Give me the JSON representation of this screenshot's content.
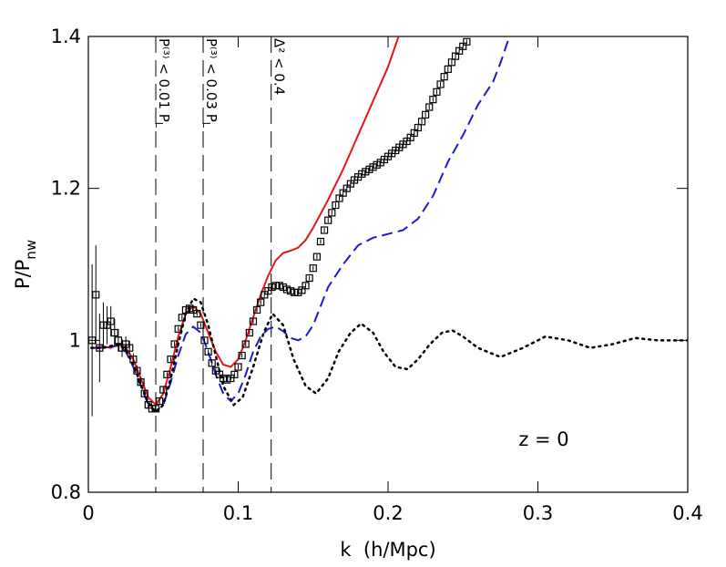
{
  "chart_data": {
    "type": "line",
    "x_label": "k  (h/Mpc)",
    "y_label": "P/P",
    "y_label_sub": "nw",
    "annotation": "z = 0",
    "xlim": [
      0,
      0.4
    ],
    "ylim": [
      0.8,
      1.4
    ],
    "xticks": [
      0,
      0.1,
      0.2,
      0.3,
      0.4
    ],
    "yticks": [
      0.8,
      1,
      1.2,
      1.4
    ],
    "vlines": [
      {
        "x": 0.045,
        "label": "P⁽³⁾ < 0.01 P",
        "label_sub": "L"
      },
      {
        "x": 0.0766,
        "label": "P⁽³⁾ < 0.03 P",
        "label_sub": "L"
      },
      {
        "x": 0.122,
        "label": "Δ² < 0.4"
      }
    ],
    "series": [
      {
        "style": "solid",
        "color": "#e8141c",
        "x": [
          0.004,
          0.01,
          0.015,
          0.02,
          0.025,
          0.03,
          0.035,
          0.04,
          0.045,
          0.05,
          0.055,
          0.06,
          0.065,
          0.07,
          0.075,
          0.08,
          0.085,
          0.09,
          0.095,
          0.1,
          0.105,
          0.11,
          0.115,
          0.12,
          0.125,
          0.13,
          0.135,
          0.14,
          0.145,
          0.15,
          0.16,
          0.17,
          0.18,
          0.19,
          0.2,
          0.207
        ],
        "values": [
          0.99,
          0.992,
          0.99,
          0.995,
          0.99,
          0.975,
          0.95,
          0.925,
          0.915,
          0.93,
          0.965,
          1.005,
          1.035,
          1.045,
          1.035,
          1.01,
          0.985,
          0.968,
          0.965,
          0.975,
          1.0,
          1.03,
          1.06,
          1.085,
          1.105,
          1.115,
          1.118,
          1.122,
          1.132,
          1.148,
          1.185,
          1.225,
          1.27,
          1.315,
          1.36,
          1.4
        ]
      },
      {
        "style": "dashed",
        "color": "#1a1ad6",
        "x": [
          0.002,
          0.01,
          0.02,
          0.025,
          0.03,
          0.035,
          0.04,
          0.045,
          0.05,
          0.055,
          0.06,
          0.065,
          0.07,
          0.075,
          0.08,
          0.085,
          0.09,
          0.095,
          0.1,
          0.105,
          0.11,
          0.115,
          0.12,
          0.125,
          0.13,
          0.135,
          0.14,
          0.145,
          0.15,
          0.155,
          0.16,
          0.17,
          0.18,
          0.19,
          0.2,
          0.21,
          0.22,
          0.23,
          0.24,
          0.25,
          0.26,
          0.27,
          0.275,
          0.281
        ],
        "values": [
          0.99,
          0.99,
          0.993,
          0.985,
          0.965,
          0.94,
          0.915,
          0.907,
          0.915,
          0.945,
          0.98,
          1.008,
          1.018,
          1.01,
          0.985,
          0.955,
          0.93,
          0.92,
          0.93,
          0.955,
          0.985,
          1.005,
          1.015,
          1.018,
          1.012,
          1.003,
          1.0,
          1.005,
          1.02,
          1.045,
          1.07,
          1.1,
          1.125,
          1.135,
          1.14,
          1.145,
          1.16,
          1.19,
          1.235,
          1.27,
          1.31,
          1.34,
          1.365,
          1.4
        ]
      },
      {
        "style": "dotted",
        "color": "#000000",
        "x": [
          0.002,
          0.01,
          0.02,
          0.025,
          0.03,
          0.035,
          0.04,
          0.045,
          0.05,
          0.055,
          0.06,
          0.065,
          0.07,
          0.075,
          0.08,
          0.085,
          0.09,
          0.097,
          0.103,
          0.11,
          0.117,
          0.123,
          0.13,
          0.137,
          0.145,
          0.152,
          0.16,
          0.167,
          0.175,
          0.182,
          0.19,
          0.197,
          0.205,
          0.213,
          0.22,
          0.228,
          0.236,
          0.243,
          0.25,
          0.26,
          0.275,
          0.29,
          0.305,
          0.32,
          0.335,
          0.35,
          0.365,
          0.38,
          0.4
        ],
        "values": [
          0.99,
          0.99,
          0.995,
          0.987,
          0.968,
          0.942,
          0.918,
          0.905,
          0.915,
          0.95,
          0.995,
          1.035,
          1.055,
          1.05,
          1.02,
          0.98,
          0.94,
          0.915,
          0.925,
          0.965,
          1.01,
          1.035,
          1.02,
          0.975,
          0.94,
          0.93,
          0.95,
          0.985,
          1.01,
          1.022,
          1.01,
          0.985,
          0.965,
          0.962,
          0.975,
          0.995,
          1.01,
          1.013,
          1.005,
          0.99,
          0.978,
          0.99,
          1.005,
          1.0,
          0.99,
          0.995,
          1.003,
          1.0,
          1.0
        ]
      },
      {
        "style": "markers",
        "color": "#000000",
        "x": [
          0.0025,
          0.005,
          0.0075,
          0.01,
          0.0125,
          0.015,
          0.0175,
          0.02,
          0.0225,
          0.025,
          0.0275,
          0.03,
          0.0325,
          0.035,
          0.0375,
          0.04,
          0.0425,
          0.045,
          0.0475,
          0.05,
          0.0525,
          0.055,
          0.0575,
          0.06,
          0.0625,
          0.065,
          0.0675,
          0.07,
          0.0725,
          0.075,
          0.0775,
          0.08,
          0.0825,
          0.085,
          0.0875,
          0.09,
          0.0925,
          0.095,
          0.0975,
          0.1,
          0.1025,
          0.105,
          0.1075,
          0.11,
          0.1125,
          0.115,
          0.1175,
          0.12,
          0.1225,
          0.125,
          0.1275,
          0.13,
          0.1325,
          0.135,
          0.1375,
          0.14,
          0.1425,
          0.145,
          0.1475,
          0.15,
          0.1525,
          0.155,
          0.1575,
          0.16,
          0.1625,
          0.165,
          0.1675,
          0.17,
          0.1725,
          0.175,
          0.1775,
          0.18,
          0.1825,
          0.185,
          0.1875,
          0.19,
          0.1925,
          0.195,
          0.1975,
          0.2,
          0.2025,
          0.205,
          0.2075,
          0.21,
          0.2125,
          0.215,
          0.2175,
          0.22,
          0.2225,
          0.225,
          0.2275,
          0.23,
          0.2325,
          0.235,
          0.2375,
          0.24,
          0.2425,
          0.245,
          0.2475,
          0.25,
          0.2525
        ],
        "values": [
          1.0,
          1.06,
          0.99,
          1.02,
          1.02,
          1.025,
          1.01,
          1.0,
          0.99,
          0.995,
          0.99,
          0.975,
          0.96,
          0.945,
          0.93,
          0.915,
          0.91,
          0.91,
          0.92,
          0.935,
          0.955,
          0.975,
          0.995,
          1.015,
          1.03,
          1.04,
          1.042,
          1.04,
          1.035,
          1.02,
          1.0,
          0.985,
          0.97,
          0.96,
          0.955,
          0.95,
          0.948,
          0.95,
          0.955,
          0.965,
          0.98,
          0.995,
          1.01,
          1.025,
          1.04,
          1.05,
          1.06,
          1.065,
          1.07,
          1.072,
          1.072,
          1.07,
          1.067,
          1.065,
          1.063,
          1.063,
          1.066,
          1.072,
          1.082,
          1.095,
          1.11,
          1.13,
          1.145,
          1.158,
          1.168,
          1.178,
          1.187,
          1.194,
          1.2,
          1.206,
          1.211,
          1.215,
          1.219,
          1.222,
          1.225,
          1.228,
          1.231,
          1.234,
          1.238,
          1.242,
          1.246,
          1.25,
          1.254,
          1.258,
          1.262,
          1.267,
          1.273,
          1.28,
          1.288,
          1.297,
          1.307,
          1.317,
          1.327,
          1.337,
          1.347,
          1.357,
          1.366,
          1.374,
          1.381,
          1.387,
          1.393
        ],
        "errors": [
          0.1,
          0.065,
          0.045,
          0.03,
          0.025,
          0.02,
          0.018,
          0.015,
          0.012,
          0.01,
          0.009,
          0.008,
          0.007,
          0.006,
          0.005,
          0.005,
          0.004,
          0.004,
          0.004,
          0.004,
          0.003,
          0.003,
          0.003,
          0.003,
          0.003,
          0.003,
          0.003,
          0.003,
          0.003,
          0.003,
          0.003,
          0.003,
          0.003,
          0.003,
          0.003,
          0.003,
          0.003,
          0.003,
          0.003,
          0.003,
          0.003,
          0.003,
          0.003,
          0.003,
          0.003,
          0.003,
          0.003,
          0.003,
          0.003,
          0.003,
          0.003,
          0.003,
          0.003,
          0.003,
          0.003,
          0.003,
          0.003,
          0.003,
          0.003,
          0.003,
          0.003,
          0.003,
          0.003,
          0.003,
          0.003,
          0.003,
          0.003,
          0.003,
          0.003,
          0.003,
          0.003,
          0.003,
          0.003,
          0.003,
          0.003,
          0.003,
          0.003,
          0.003,
          0.003,
          0.003,
          0.003,
          0.003,
          0.003,
          0.003,
          0.003,
          0.003,
          0.003,
          0.003,
          0.003,
          0.003,
          0.003,
          0.003,
          0.003,
          0.003,
          0.003,
          0.003,
          0.003,
          0.003,
          0.003,
          0.003,
          0.003
        ]
      }
    ]
  }
}
